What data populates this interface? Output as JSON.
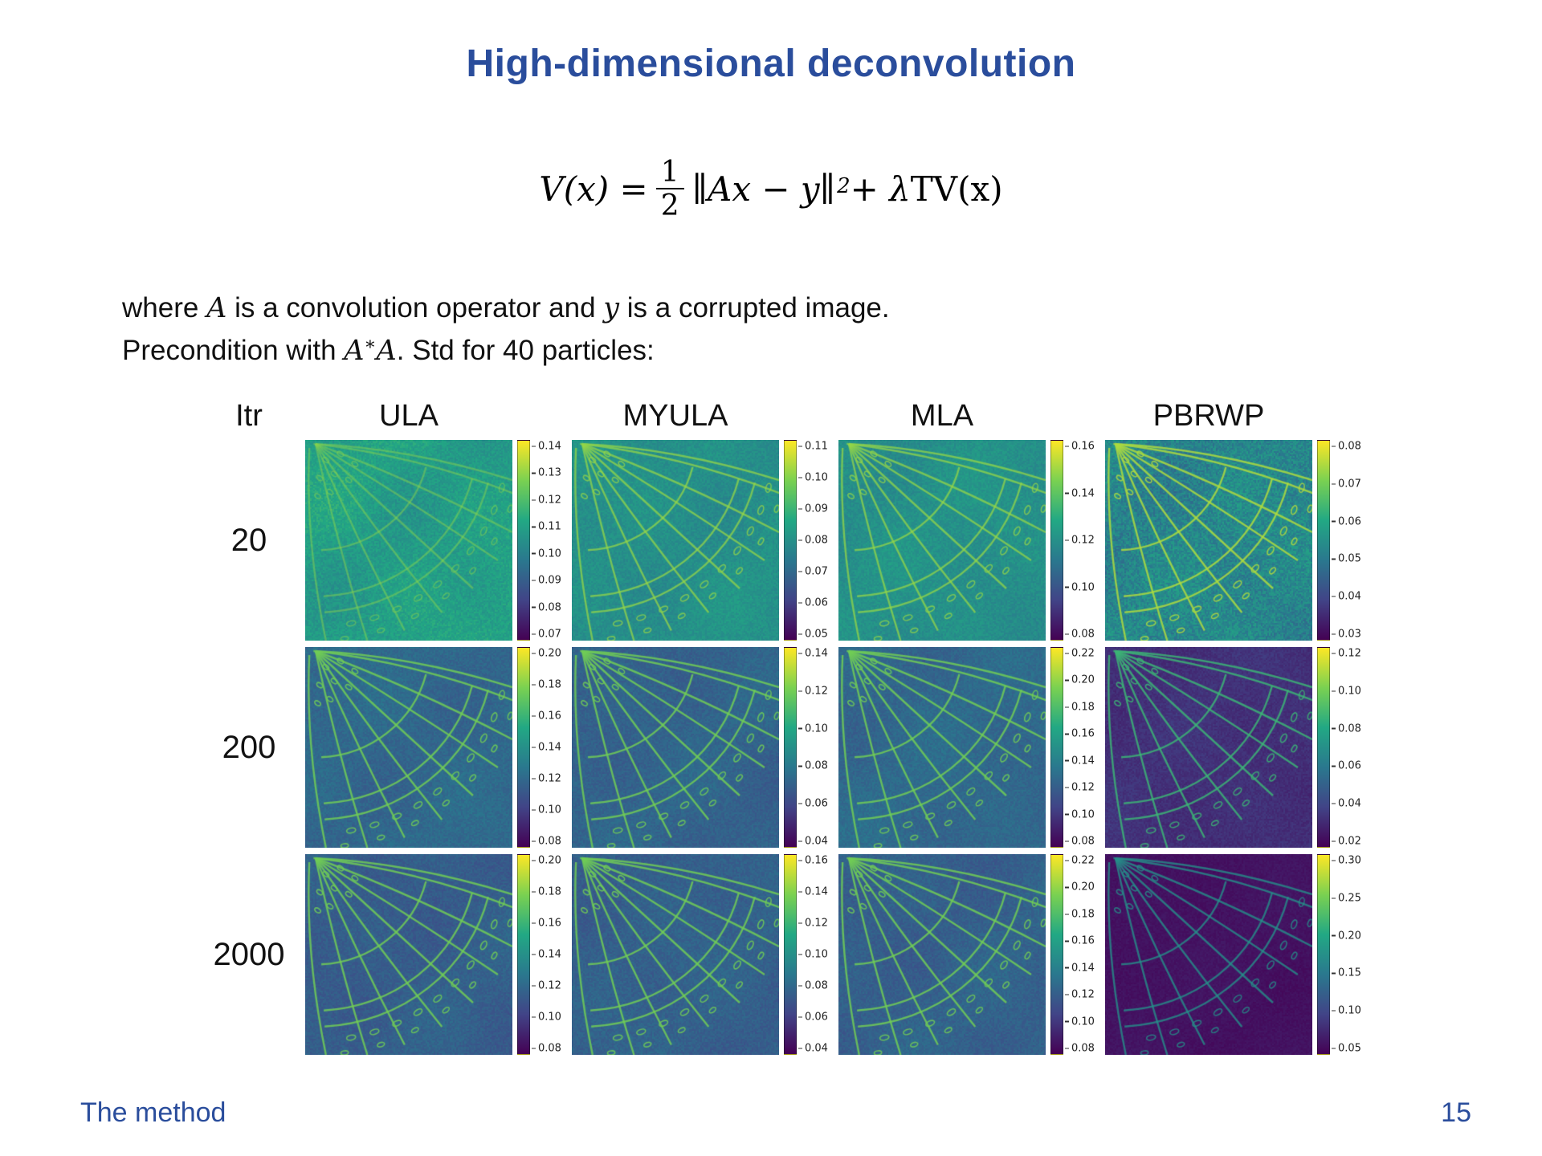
{
  "slide": {
    "title": "High-dimensional deconvolution",
    "body1": [
      "where ",
      "A",
      " is a convolution operator and ",
      "y",
      " is a corrupted image."
    ],
    "body2": [
      "Precondition with ",
      "A",
      "∗",
      "A",
      ".  Std for 40 particles:"
    ],
    "footer_left": "The method",
    "page_number": "15"
  },
  "formula": {
    "lhs": "V(x) = ",
    "numerator": "1",
    "denominator": "2",
    "norm": "∥Ax − y∥",
    "exponent": "2",
    "tail_plus": " + λ ",
    "tail_tv": "TV(x)"
  },
  "colors": {
    "accent": "#2a4d9c",
    "text": "#1a1a1a",
    "tick_text": "#222222",
    "viridis_stops": [
      "#440154",
      "#414487",
      "#2a788e",
      "#22a884",
      "#7ad151",
      "#fde725"
    ]
  },
  "table": {
    "itr_header": "Itr",
    "columns": [
      "ULA",
      "MYULA",
      "MLA",
      "PBRWP"
    ],
    "rows": [
      {
        "itr": "20",
        "panels": [
          {
            "col": "ULA",
            "ticks": [
              "0.14",
              "0.13",
              "0.12",
              "0.11",
              "0.10",
              "0.09",
              "0.08",
              "0.07"
            ],
            "bg": 0.56,
            "noise": 0.055,
            "blob": 0.05,
            "vein": 0.82,
            "alpha": 0.5
          },
          {
            "col": "MYULA",
            "ticks": [
              "0.11",
              "0.10",
              "0.09",
              "0.08",
              "0.07",
              "0.06",
              "0.05"
            ],
            "bg": 0.5,
            "noise": 0.045,
            "blob": 0.035,
            "vein": 0.84,
            "alpha": 0.75
          },
          {
            "col": "MLA",
            "ticks": [
              "0.16",
              "0.14",
              "0.12",
              "0.10",
              "0.08"
            ],
            "bg": 0.5,
            "noise": 0.045,
            "blob": 0.035,
            "vein": 0.84,
            "alpha": 0.75
          },
          {
            "col": "PBRWP",
            "ticks": [
              "0.08",
              "0.07",
              "0.06",
              "0.05",
              "0.04",
              "0.03"
            ],
            "bg": 0.46,
            "noise": 0.09,
            "blob": 0.05,
            "vein": 0.88,
            "alpha": 0.85
          }
        ]
      },
      {
        "itr": "200",
        "panels": [
          {
            "col": "ULA",
            "ticks": [
              "0.20",
              "0.18",
              "0.16",
              "0.14",
              "0.12",
              "0.10",
              "0.08"
            ],
            "bg": 0.34,
            "noise": 0.04,
            "blob": 0.03,
            "vein": 0.78,
            "alpha": 0.85
          },
          {
            "col": "MYULA",
            "ticks": [
              "0.14",
              "0.12",
              "0.10",
              "0.08",
              "0.06",
              "0.04"
            ],
            "bg": 0.32,
            "noise": 0.04,
            "blob": 0.03,
            "vein": 0.78,
            "alpha": 0.85
          },
          {
            "col": "MLA",
            "ticks": [
              "0.22",
              "0.20",
              "0.18",
              "0.16",
              "0.14",
              "0.12",
              "0.10",
              "0.08"
            ],
            "bg": 0.34,
            "noise": 0.04,
            "blob": 0.03,
            "vein": 0.78,
            "alpha": 0.85
          },
          {
            "col": "PBRWP",
            "ticks": [
              "0.12",
              "0.10",
              "0.08",
              "0.06",
              "0.04",
              "0.02"
            ],
            "bg": 0.14,
            "noise": 0.03,
            "blob": 0.02,
            "vein": 0.66,
            "alpha": 0.85
          }
        ]
      },
      {
        "itr": "2000",
        "panels": [
          {
            "col": "ULA",
            "ticks": [
              "0.20",
              "0.18",
              "0.16",
              "0.14",
              "0.12",
              "0.10",
              "0.08"
            ],
            "bg": 0.3,
            "noise": 0.04,
            "blob": 0.03,
            "vein": 0.78,
            "alpha": 0.85
          },
          {
            "col": "MYULA",
            "ticks": [
              "0.16",
              "0.14",
              "0.12",
              "0.10",
              "0.08",
              "0.06",
              "0.04"
            ],
            "bg": 0.31,
            "noise": 0.04,
            "blob": 0.03,
            "vein": 0.78,
            "alpha": 0.85
          },
          {
            "col": "MLA",
            "ticks": [
              "0.22",
              "0.20",
              "0.18",
              "0.16",
              "0.14",
              "0.12",
              "0.10",
              "0.08"
            ],
            "bg": 0.31,
            "noise": 0.04,
            "blob": 0.03,
            "vein": 0.78,
            "alpha": 0.85
          },
          {
            "col": "PBRWP",
            "ticks": [
              "0.30",
              "0.25",
              "0.20",
              "0.15",
              "0.10",
              "0.05"
            ],
            "bg": 0.05,
            "noise": 0.02,
            "blob": 0.012,
            "vein": 0.5,
            "alpha": 0.8
          }
        ]
      }
    ]
  }
}
